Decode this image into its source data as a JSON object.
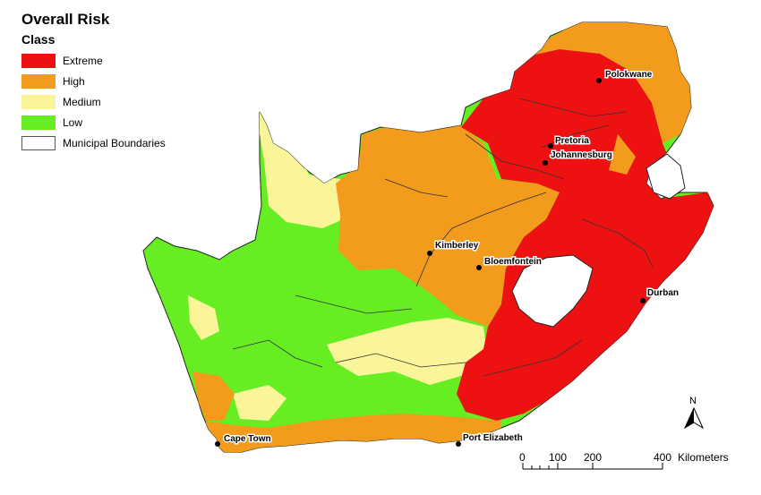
{
  "legend": {
    "title": "Overall Risk",
    "subtitle": "Class",
    "items": [
      {
        "label": "Extreme",
        "color": "#ee1111"
      },
      {
        "label": "High",
        "color": "#f29b1c"
      },
      {
        "label": "Medium",
        "color": "#fbf59a"
      },
      {
        "label": "Low",
        "color": "#66ee22"
      },
      {
        "label": "Municipal Boundaries",
        "color": "#ffffff"
      }
    ]
  },
  "cities": {
    "polokwane": "Polokwane",
    "pretoria": "Pretoria",
    "johannesburg": "Johannesburg",
    "kimberley": "Kimberley",
    "bloemfontein": "Bloemfontein",
    "durban": "Durban",
    "cape_town": "Cape Town",
    "port_elizabeth": "Port Elizabeth"
  },
  "scale_bar": {
    "ticks": [
      "0",
      "100",
      "200",
      "400"
    ],
    "unit": "Kilometers"
  },
  "north_arrow": {
    "label": "N"
  }
}
